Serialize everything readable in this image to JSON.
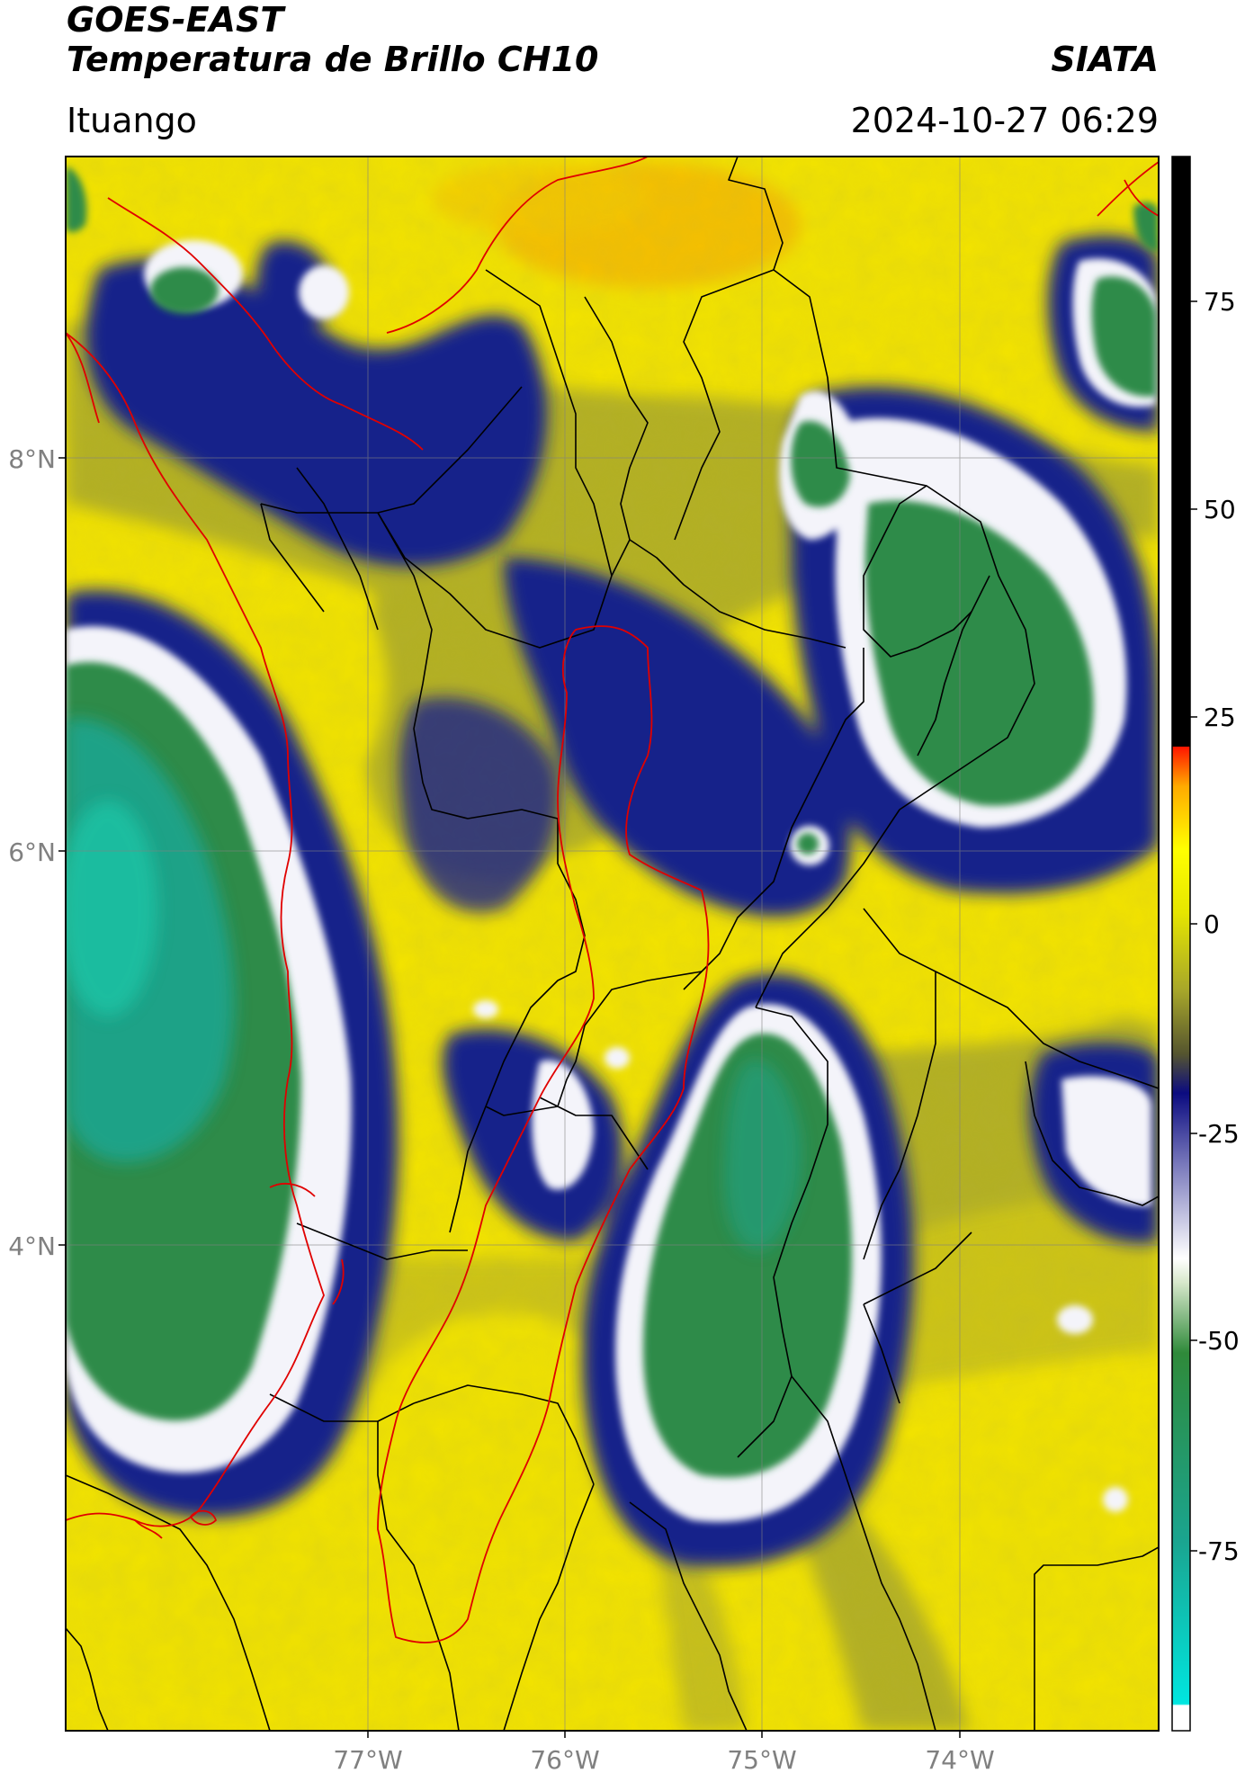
{
  "header": {
    "satellite": "GOES-EAST",
    "product": "Temperatura de Brillo CH10",
    "org": "SIATA",
    "location": "Ituango",
    "datetime": "2024-10-27 06:29"
  },
  "map": {
    "lat_labels": [
      "8°N",
      "6°N",
      "4°N"
    ],
    "lon_labels": [
      "77°W",
      "76°W",
      "75°W",
      "74°W"
    ],
    "colors": {
      "yellow": "#f4e400",
      "olive": "#b4b02a",
      "navy": "#131a82",
      "white": "#f2f2f6",
      "green": "#2f8a4a",
      "teal": "#17a88f",
      "border_red": "#e00000",
      "border_black": "#000000"
    }
  },
  "colorbar": {
    "ticks": [
      "75",
      "50",
      "25",
      "0",
      "-25",
      "-50",
      "-75"
    ],
    "colors": [
      "#ffffff",
      "#00e0e0",
      "#1b9d8a",
      "#2e8a3b",
      "#e8f0e0",
      "#ffffff",
      "#8a8ac8",
      "#10107f",
      "#6f6f40",
      "#b8b830",
      "#ffff00",
      "#ffa000",
      "#ff0000",
      "#000000"
    ]
  }
}
